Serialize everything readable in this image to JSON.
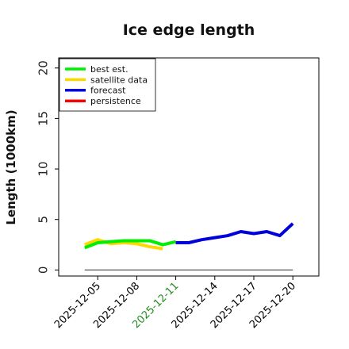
{
  "chart_data": {
    "type": "line",
    "title": "Ice edge length",
    "xlabel": "",
    "ylabel": "Length (1000km)",
    "ylim": [
      -0.6,
      21
    ],
    "yticks": [
      "0",
      "5",
      "10",
      "15",
      "20"
    ],
    "x_start": "2025-12-02",
    "x_end": "2025-12-22",
    "xticks": [
      {
        "label": "2025-12-05",
        "date": "2025-12-05",
        "color": "#000000"
      },
      {
        "label": "2025-12-08",
        "date": "2025-12-08",
        "color": "#000000"
      },
      {
        "label": "2025-12-11",
        "date": "2025-12-11",
        "color": "#228B22"
      },
      {
        "label": "2025-12-14",
        "date": "2025-12-14",
        "color": "#000000"
      },
      {
        "label": "2025-12-17",
        "date": "2025-12-17",
        "color": "#000000"
      },
      {
        "label": "2025-12-20",
        "date": "2025-12-20",
        "color": "#000000"
      }
    ],
    "grid": false,
    "legend_position": "top-left",
    "legend": [
      {
        "label": "best est.",
        "color": "#00ee00"
      },
      {
        "label": "satellite data",
        "color": "#ffd700"
      },
      {
        "label": "forecast",
        "color": "#0000dd"
      },
      {
        "label": "persistence",
        "color": "#ff0000"
      }
    ],
    "series": [
      {
        "name": "satellite data",
        "color": "#ffd700",
        "x": [
          "2025-12-04",
          "2025-12-05",
          "2025-12-06",
          "2025-12-07",
          "2025-12-08",
          "2025-12-09",
          "2025-12-10"
        ],
        "y": [
          2.5,
          3.0,
          2.6,
          2.7,
          2.6,
          2.3,
          2.1
        ]
      },
      {
        "name": "best est.",
        "color": "#00ee00",
        "x": [
          "2025-12-04",
          "2025-12-05",
          "2025-12-06",
          "2025-12-07",
          "2025-12-08",
          "2025-12-09",
          "2025-12-10",
          "2025-12-11"
        ],
        "y": [
          2.2,
          2.7,
          2.8,
          2.9,
          2.9,
          2.9,
          2.5,
          2.8
        ]
      },
      {
        "name": "forecast",
        "color": "#0000dd",
        "x": [
          "2025-12-11",
          "2025-12-12",
          "2025-12-13",
          "2025-12-14",
          "2025-12-15",
          "2025-12-16",
          "2025-12-17",
          "2025-12-18",
          "2025-12-19",
          "2025-12-20"
        ],
        "y": [
          2.7,
          2.7,
          3.0,
          3.2,
          3.4,
          3.8,
          3.6,
          3.8,
          3.4,
          4.6
        ]
      }
    ],
    "reference_line": {
      "y": 0,
      "x": [
        "2025-12-04",
        "2025-12-20"
      ],
      "color": "#555555"
    }
  }
}
